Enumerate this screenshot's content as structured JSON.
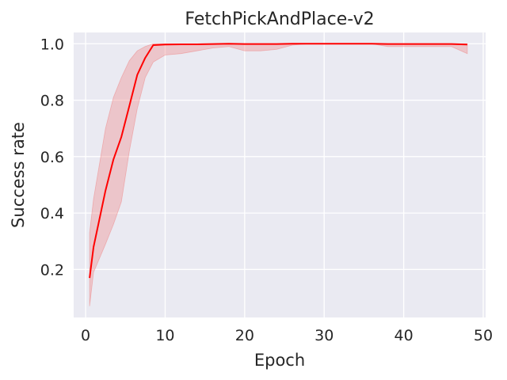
{
  "chart_data": {
    "type": "line",
    "title": "FetchPickAndPlace-v2",
    "xlabel": "Epoch",
    "ylabel": "Success rate",
    "xlim": [
      -1.5,
      50.3
    ],
    "ylim": [
      0.03,
      1.04
    ],
    "xticks": [
      0,
      10,
      20,
      30,
      40,
      50
    ],
    "yticks": [
      0.2,
      0.4,
      0.6,
      0.8,
      1.0
    ],
    "xtick_labels": [
      "0",
      "10",
      "20",
      "30",
      "40",
      "50"
    ],
    "ytick_labels": [
      "0.2",
      "0.4",
      "0.6",
      "0.8",
      "1.0"
    ],
    "grid": true,
    "background": "#eaeaf2",
    "series": [
      {
        "color": "#ff0000",
        "band_color": "#f08080",
        "x": [
          0.5,
          1.0,
          2.5,
          3.5,
          4.5,
          5.5,
          6.5,
          7.5,
          8.5,
          10,
          12,
          14,
          16,
          18,
          20,
          22,
          24,
          26,
          28,
          30,
          32,
          34,
          36,
          38,
          40,
          42,
          44,
          46,
          48
        ],
        "y": [
          0.17,
          0.28,
          0.48,
          0.59,
          0.67,
          0.78,
          0.89,
          0.95,
          0.995,
          0.997,
          0.998,
          0.998,
          0.999,
          1.0,
          0.999,
          0.999,
          0.999,
          1.0,
          1.0,
          1.0,
          1.0,
          1.0,
          1.0,
          0.999,
          0.999,
          0.999,
          0.999,
          0.999,
          0.997
        ],
        "lower": [
          0.07,
          0.19,
          0.29,
          0.36,
          0.44,
          0.62,
          0.77,
          0.88,
          0.935,
          0.96,
          0.965,
          0.975,
          0.985,
          0.99,
          0.975,
          0.975,
          0.98,
          0.995,
          1.0,
          1.0,
          1.0,
          1.0,
          1.0,
          0.99,
          0.99,
          0.99,
          0.99,
          0.99,
          0.965
        ],
        "upper": [
          0.33,
          0.45,
          0.7,
          0.81,
          0.88,
          0.94,
          0.975,
          0.99,
          1.0,
          1.0,
          1.0,
          1.0,
          1.0,
          1.0,
          1.0,
          1.0,
          1.0,
          1.0,
          1.0,
          1.0,
          1.0,
          1.0,
          1.0,
          1.0,
          1.0,
          1.0,
          1.0,
          1.0,
          1.0
        ]
      }
    ]
  }
}
